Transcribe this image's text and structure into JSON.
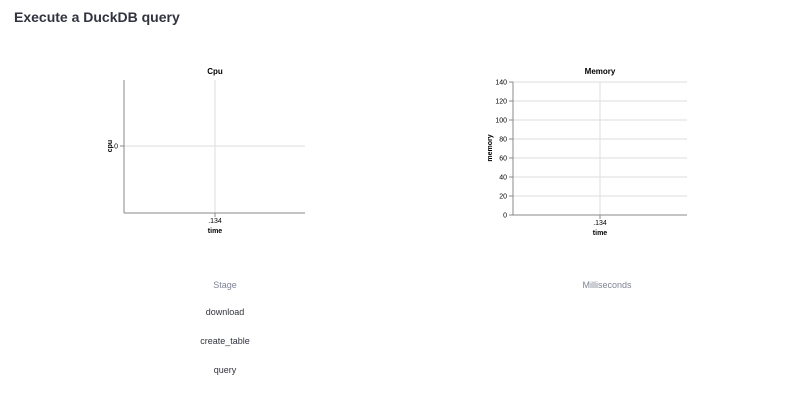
{
  "page": {
    "title": "Execute a DuckDB query"
  },
  "chart_data": [
    {
      "type": "line",
      "title": "Cpu",
      "xlabel": "time",
      "ylabel": "cpu",
      "x_ticks": [
        ".134"
      ],
      "y_ticks": [
        0
      ],
      "series": [
        {
          "x": [
            ".134"
          ],
          "values": [
            0
          ]
        }
      ],
      "grid": true
    },
    {
      "type": "line",
      "title": "Memory",
      "xlabel": "time",
      "ylabel": "memory",
      "x_ticks": [
        ".134"
      ],
      "y_ticks": [
        0,
        20,
        40,
        60,
        80,
        100,
        120,
        140
      ],
      "ylim": [
        0,
        140
      ],
      "series": [
        {
          "x": [
            ".134"
          ],
          "values": [
            0
          ]
        }
      ],
      "grid": true
    }
  ],
  "table": {
    "columns": [
      "Stage",
      "Milliseconds"
    ],
    "rows": [
      {
        "stage": "download",
        "milliseconds": ""
      },
      {
        "stage": "create_table",
        "milliseconds": ""
      },
      {
        "stage": "query",
        "milliseconds": ""
      }
    ]
  }
}
